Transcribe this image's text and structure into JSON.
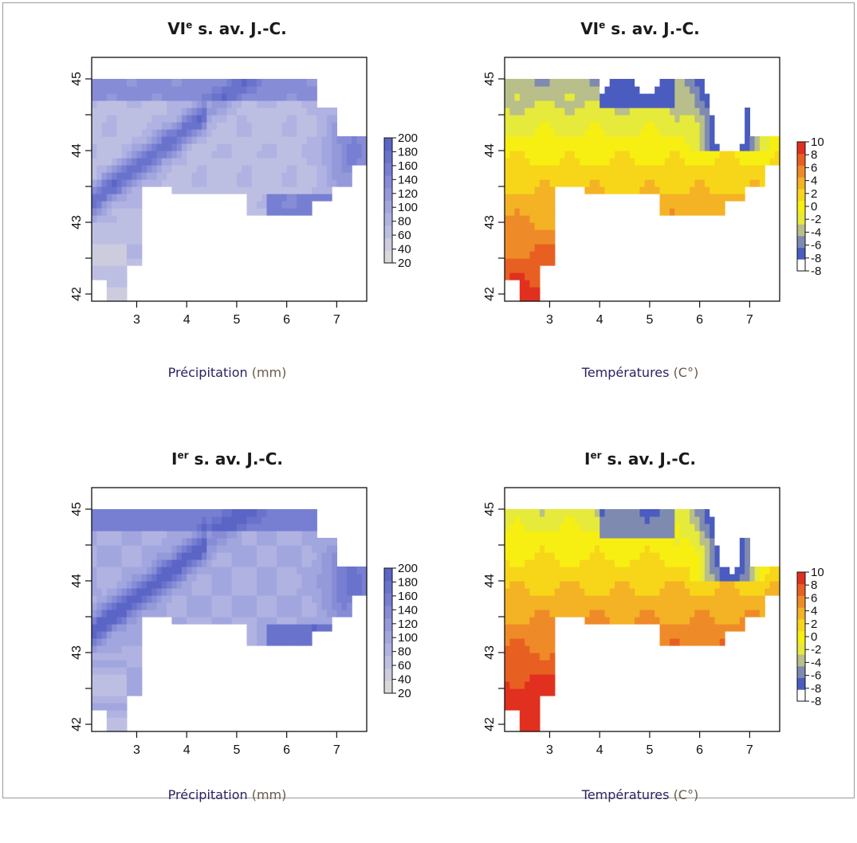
{
  "figure": {
    "panels": [
      {
        "id": "precip-vi",
        "title_main": "VI",
        "title_sup": "e",
        "title_rest": " s. av. J.-C.",
        "caption_main": "Précipitation ",
        "caption_unit": "(mm)",
        "variable": "precipitation",
        "legend_ticks": [
          "200",
          "180",
          "160",
          "140",
          "120",
          "100",
          "80",
          "60",
          "40",
          "20"
        ]
      },
      {
        "id": "temp-vi",
        "title_main": "VI",
        "title_sup": "e",
        "title_rest": " s. av. J.-C.",
        "caption_main": "Températures ",
        "caption_unit": "(C°)",
        "variable": "temperature",
        "legend_ticks": [
          "10",
          "8",
          "6",
          "4",
          "2",
          "0",
          "-2",
          "-4",
          "-6",
          "-8",
          "-8"
        ]
      },
      {
        "id": "precip-i",
        "title_main": "I",
        "title_sup": "er",
        "title_rest": " s. av. J.-C.",
        "caption_main": "Précipitation ",
        "caption_unit": "(mm)",
        "variable": "precipitation",
        "legend_ticks": [
          "200",
          "180",
          "160",
          "140",
          "120",
          "100",
          "80",
          "60",
          "40",
          "20"
        ]
      },
      {
        "id": "temp-i",
        "title_main": "I",
        "title_sup": "er",
        "title_rest": " s. av. J.-C.",
        "caption_main": "Températures ",
        "caption_unit": "(C°)",
        "variable": "temperature",
        "legend_ticks": [
          "10",
          "8",
          "6",
          "4",
          "2",
          "0",
          "-2",
          "-4",
          "-6",
          "-8",
          "-8"
        ]
      }
    ],
    "axes": {
      "x_ticks": [
        "3",
        "4",
        "5",
        "6",
        "7"
      ],
      "y_ticks": [
        "42",
        "43",
        "44",
        "45"
      ],
      "xlim": [
        2.1,
        7.6
      ],
      "ylim": [
        41.9,
        45.3
      ]
    },
    "colors": {
      "precip_scale": [
        "#d9d9db",
        "#ccccde",
        "#bdbfe2",
        "#b0b2e2",
        "#a2a6de",
        "#9499da",
        "#868cd6",
        "#777fd2",
        "#6a73cc",
        "#5a65c6"
      ],
      "temp_scale": [
        "#ffffff",
        "#4a5cbf",
        "#7f8ab0",
        "#b8bf8a",
        "#e6ea3a",
        "#f7ef12",
        "#f7d61a",
        "#f4b225",
        "#ee8b28",
        "#e85f22",
        "#e1301f"
      ]
    }
  }
}
